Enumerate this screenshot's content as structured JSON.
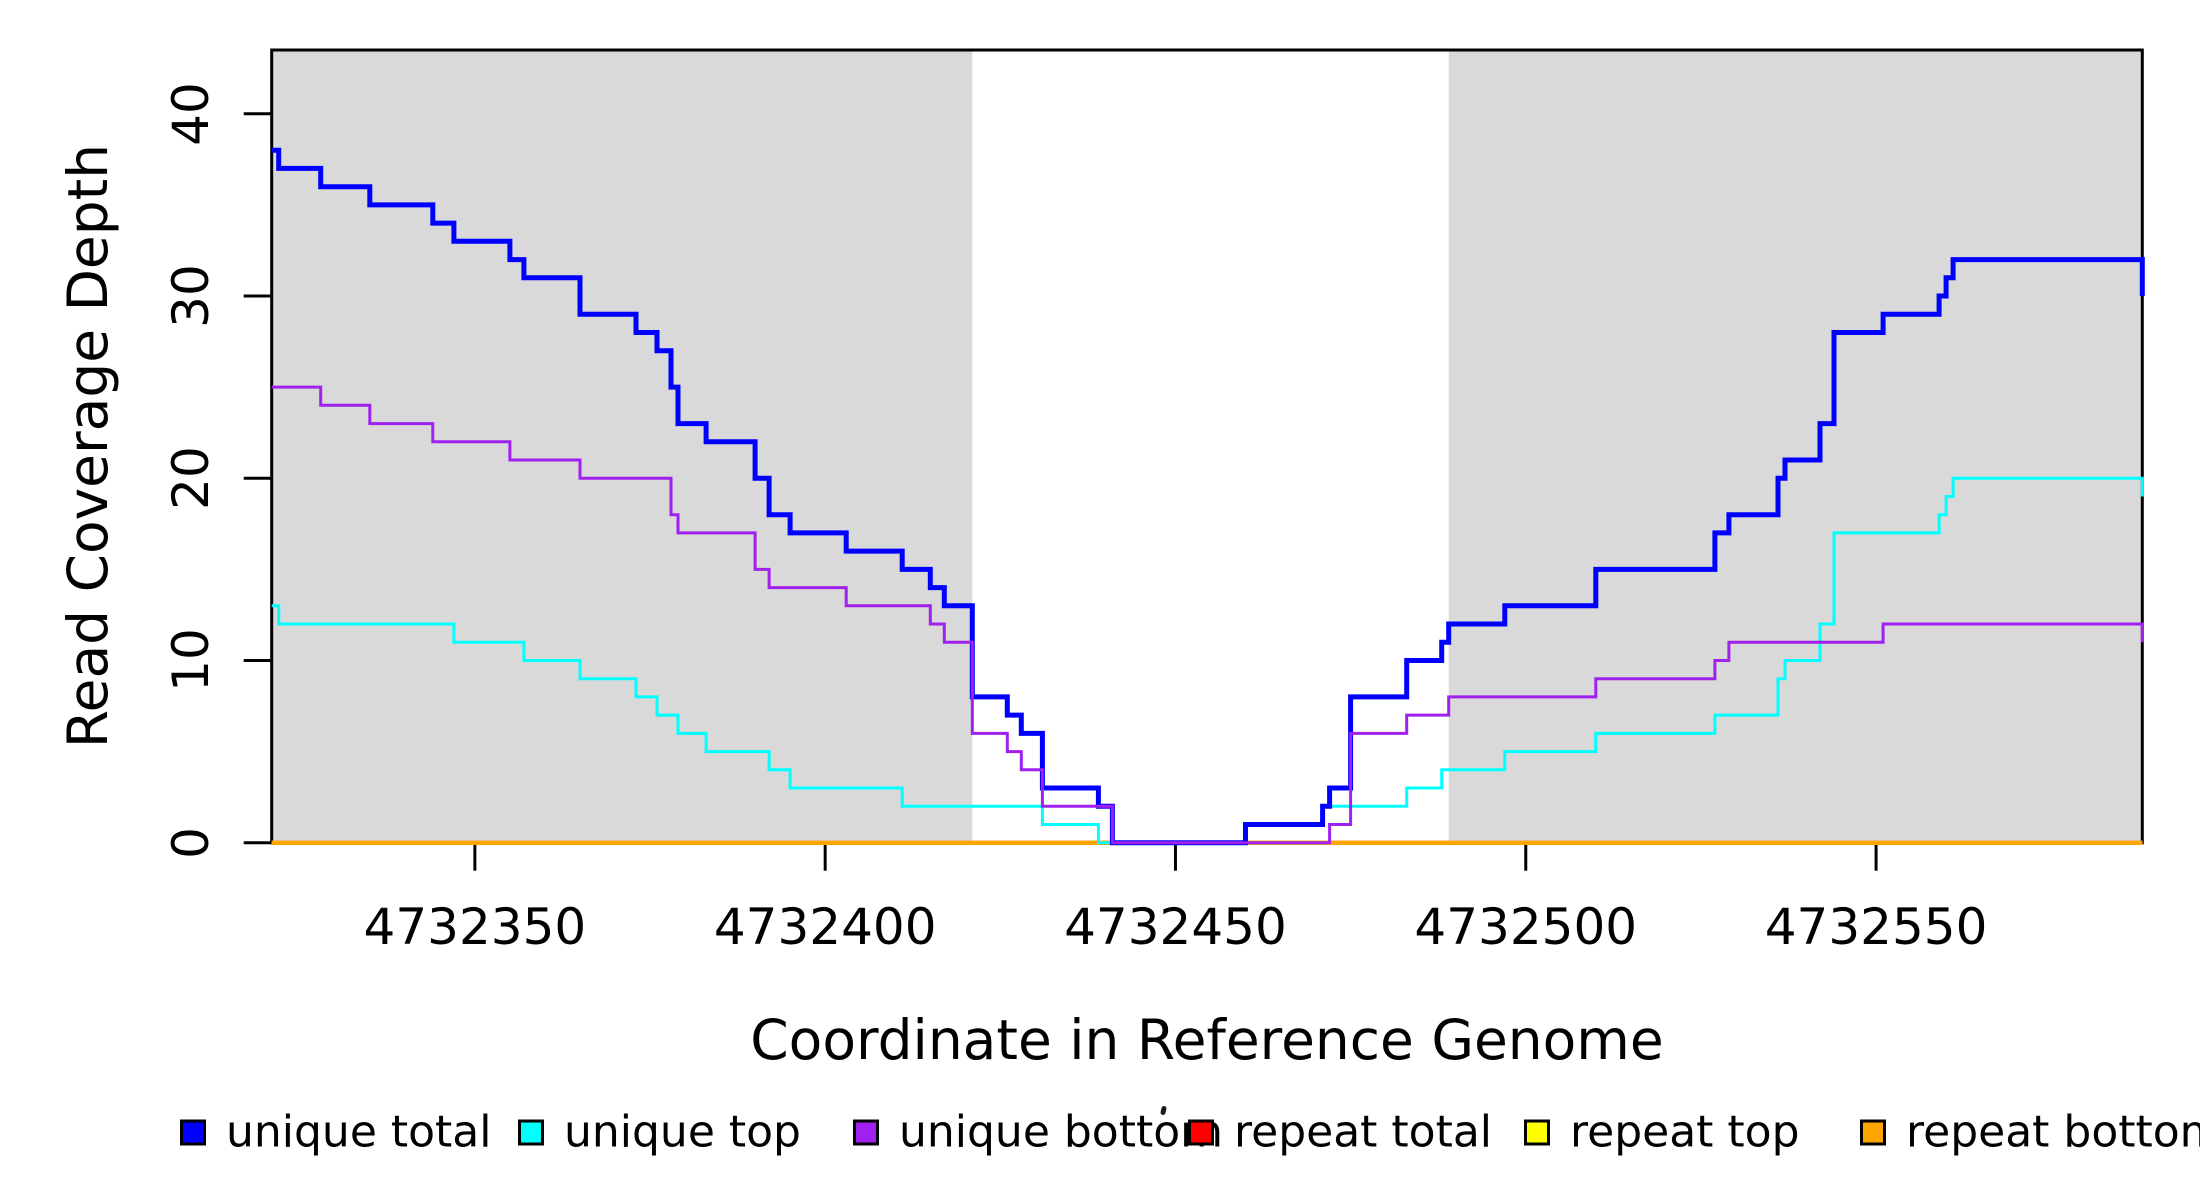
{
  "chart_data": {
    "type": "line",
    "step_mode": "after",
    "title": "",
    "xlabel": "Coordinate in Reference Genome",
    "ylabel": "Read Coverage Depth",
    "xlim": [
      4732321,
      4732588
    ],
    "ylim": [
      0,
      43.5
    ],
    "x_ticks": [
      4732350,
      4732400,
      4732450,
      4732500,
      4732550
    ],
    "y_ticks": [
      0,
      10,
      20,
      30,
      40
    ],
    "grid": false,
    "plot_background": "#FFFFFF",
    "axis_color": "#000000",
    "shaded_regions": [
      {
        "start": 4732321,
        "end": 4732421,
        "color": "#D9D9D9"
      },
      {
        "start": 4732489,
        "end": 4732588,
        "color": "#D9D9D9"
      }
    ],
    "series": [
      {
        "name": "unique total",
        "color": "#0000FF",
        "width": 5,
        "points": [
          [
            4732321,
            38
          ],
          [
            4732322,
            37
          ],
          [
            4732328,
            36
          ],
          [
            4732335,
            35
          ],
          [
            4732344,
            34
          ],
          [
            4732347,
            33
          ],
          [
            4732355,
            32
          ],
          [
            4732357,
            31
          ],
          [
            4732365,
            29
          ],
          [
            4732373,
            28
          ],
          [
            4732376,
            27
          ],
          [
            4732378,
            25
          ],
          [
            4732379,
            23
          ],
          [
            4732383,
            22
          ],
          [
            4732390,
            20
          ],
          [
            4732392,
            18
          ],
          [
            4732395,
            17
          ],
          [
            4732403,
            16
          ],
          [
            4732411,
            15
          ],
          [
            4732415,
            14
          ],
          [
            4732417,
            13
          ],
          [
            4732421,
            8
          ],
          [
            4732426,
            7
          ],
          [
            4732428,
            6
          ],
          [
            4732431,
            3
          ],
          [
            4732439,
            2
          ],
          [
            4732441,
            0
          ],
          [
            4732460,
            1
          ],
          [
            4732471,
            2
          ],
          [
            4732472,
            3
          ],
          [
            4732475,
            8
          ],
          [
            4732483,
            10
          ],
          [
            4732488,
            11
          ],
          [
            4732489,
            12
          ],
          [
            4732497,
            13
          ],
          [
            4732510,
            15
          ],
          [
            4732527,
            17
          ],
          [
            4732529,
            18
          ],
          [
            4732536,
            20
          ],
          [
            4732537,
            21
          ],
          [
            4732542,
            23
          ],
          [
            4732544,
            28
          ],
          [
            4732551,
            29
          ],
          [
            4732559,
            30
          ],
          [
            4732560,
            31
          ],
          [
            4732561,
            32
          ],
          [
            4732588,
            30
          ]
        ]
      },
      {
        "name": "unique top",
        "color": "#00FFFF",
        "width": 3,
        "points": [
          [
            4732321,
            13
          ],
          [
            4732322,
            12
          ],
          [
            4732347,
            11
          ],
          [
            4732357,
            10
          ],
          [
            4732365,
            9
          ],
          [
            4732373,
            8
          ],
          [
            4732376,
            7
          ],
          [
            4732379,
            6
          ],
          [
            4732383,
            5
          ],
          [
            4732392,
            4
          ],
          [
            4732395,
            3
          ],
          [
            4732411,
            2
          ],
          [
            4732431,
            1
          ],
          [
            4732439,
            0
          ],
          [
            4732460,
            1
          ],
          [
            4732471,
            2
          ],
          [
            4732483,
            3
          ],
          [
            4732488,
            4
          ],
          [
            4732497,
            5
          ],
          [
            4732510,
            6
          ],
          [
            4732527,
            7
          ],
          [
            4732536,
            9
          ],
          [
            4732537,
            10
          ],
          [
            4732542,
            12
          ],
          [
            4732544,
            17
          ],
          [
            4732559,
            18
          ],
          [
            4732560,
            19
          ],
          [
            4732561,
            20
          ],
          [
            4732588,
            19
          ]
        ]
      },
      {
        "name": "unique bottom",
        "color": "#A020F0",
        "width": 3,
        "points": [
          [
            4732321,
            25
          ],
          [
            4732328,
            24
          ],
          [
            4732335,
            23
          ],
          [
            4732344,
            22
          ],
          [
            4732355,
            21
          ],
          [
            4732365,
            20
          ],
          [
            4732378,
            18
          ],
          [
            4732379,
            17
          ],
          [
            4732390,
            15
          ],
          [
            4732392,
            14
          ],
          [
            4732403,
            13
          ],
          [
            4732415,
            12
          ],
          [
            4732417,
            11
          ],
          [
            4732421,
            6
          ],
          [
            4732426,
            5
          ],
          [
            4732428,
            4
          ],
          [
            4732431,
            2
          ],
          [
            4732441,
            0
          ],
          [
            4732472,
            1
          ],
          [
            4732475,
            6
          ],
          [
            4732483,
            7
          ],
          [
            4732489,
            8
          ],
          [
            4732510,
            9
          ],
          [
            4732527,
            10
          ],
          [
            4732529,
            11
          ],
          [
            4732551,
            12
          ],
          [
            4732588,
            11
          ]
        ]
      },
      {
        "name": "repeat total",
        "color": "#FF0000",
        "width": 3,
        "points": [
          [
            4732321,
            0
          ],
          [
            4732588,
            0
          ]
        ]
      },
      {
        "name": "repeat top",
        "color": "#FFFF00",
        "width": 3,
        "points": [
          [
            4732321,
            0
          ],
          [
            4732588,
            0
          ]
        ]
      },
      {
        "name": "repeat bottom",
        "color": "#FFA500",
        "width": 4.5,
        "points": [
          [
            4732321,
            0
          ],
          [
            4732588,
            0
          ]
        ]
      }
    ],
    "draw_order": [
      "repeat total",
      "repeat top",
      "repeat bottom",
      "unique top",
      "unique total",
      "unique bottom"
    ],
    "legend": {
      "position": "bottom",
      "items": [
        {
          "label": "unique total",
          "color": "#0000FF"
        },
        {
          "label": "unique top",
          "color": "#00FFFF"
        },
        {
          "label": "unique bottom",
          "color": "#A020F0"
        },
        {
          "label": "repeat total",
          "color": "#FF0000"
        },
        {
          "label": "repeat top",
          "color": "#FFFF00"
        },
        {
          "label": "repeat bottom",
          "color": "#FFA500"
        }
      ]
    },
    "stray_mark": "tiny dark speck left of the repeat total legend swatch"
  }
}
